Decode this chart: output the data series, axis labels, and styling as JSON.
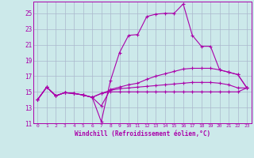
{
  "xlabel": "Windchill (Refroidissement éolien,°C)",
  "xlim": [
    -0.5,
    23.5
  ],
  "ylim": [
    11,
    26.5
  ],
  "xticks": [
    0,
    1,
    2,
    3,
    4,
    5,
    6,
    7,
    8,
    9,
    10,
    11,
    12,
    13,
    14,
    15,
    16,
    17,
    18,
    19,
    20,
    21,
    22,
    23
  ],
  "yticks": [
    11,
    13,
    15,
    17,
    19,
    21,
    23,
    25
  ],
  "bg_color": "#cce9ea",
  "grid_color": "#aab8cc",
  "line_color": "#aa00aa",
  "curves": [
    [
      [
        0,
        14.0
      ],
      [
        1,
        15.6
      ],
      [
        2,
        14.5
      ],
      [
        3,
        14.9
      ],
      [
        4,
        14.8
      ],
      [
        5,
        14.6
      ],
      [
        6,
        14.3
      ],
      [
        7,
        11.2
      ],
      [
        8,
        16.4
      ],
      [
        9,
        20.0
      ],
      [
        10,
        22.2
      ],
      [
        11,
        22.3
      ],
      [
        12,
        24.6
      ],
      [
        13,
        24.9
      ],
      [
        14,
        25.0
      ],
      [
        15,
        25.0
      ],
      [
        16,
        26.2
      ],
      [
        17,
        22.2
      ],
      [
        18,
        20.8
      ],
      [
        19,
        20.8
      ],
      [
        20,
        17.8
      ],
      [
        21,
        17.5
      ],
      [
        22,
        17.2
      ],
      [
        23,
        15.5
      ]
    ],
    [
      [
        0,
        14.0
      ],
      [
        1,
        15.6
      ],
      [
        2,
        14.5
      ],
      [
        3,
        14.9
      ],
      [
        4,
        14.8
      ],
      [
        5,
        14.6
      ],
      [
        6,
        14.3
      ],
      [
        7,
        13.2
      ],
      [
        8,
        15.3
      ],
      [
        9,
        15.6
      ],
      [
        10,
        15.9
      ],
      [
        11,
        16.1
      ],
      [
        12,
        16.6
      ],
      [
        13,
        17.0
      ],
      [
        14,
        17.3
      ],
      [
        15,
        17.6
      ],
      [
        16,
        17.9
      ],
      [
        17,
        18.0
      ],
      [
        18,
        18.0
      ],
      [
        19,
        18.0
      ],
      [
        20,
        17.8
      ],
      [
        21,
        17.5
      ],
      [
        22,
        17.2
      ],
      [
        23,
        15.5
      ]
    ],
    [
      [
        0,
        14.0
      ],
      [
        1,
        15.6
      ],
      [
        2,
        14.5
      ],
      [
        3,
        14.9
      ],
      [
        4,
        14.8
      ],
      [
        5,
        14.6
      ],
      [
        6,
        14.3
      ],
      [
        7,
        14.8
      ],
      [
        8,
        15.2
      ],
      [
        9,
        15.4
      ],
      [
        10,
        15.5
      ],
      [
        11,
        15.6
      ],
      [
        12,
        15.7
      ],
      [
        13,
        15.8
      ],
      [
        14,
        15.9
      ],
      [
        15,
        16.0
      ],
      [
        16,
        16.1
      ],
      [
        17,
        16.2
      ],
      [
        18,
        16.2
      ],
      [
        19,
        16.2
      ],
      [
        20,
        16.1
      ],
      [
        21,
        15.9
      ],
      [
        22,
        15.5
      ],
      [
        23,
        15.5
      ]
    ],
    [
      [
        0,
        14.0
      ],
      [
        1,
        15.6
      ],
      [
        2,
        14.5
      ],
      [
        3,
        14.9
      ],
      [
        4,
        14.8
      ],
      [
        5,
        14.6
      ],
      [
        6,
        14.3
      ],
      [
        7,
        14.8
      ],
      [
        8,
        15.0
      ],
      [
        9,
        15.0
      ],
      [
        10,
        15.0
      ],
      [
        11,
        15.0
      ],
      [
        12,
        15.0
      ],
      [
        13,
        15.0
      ],
      [
        14,
        15.0
      ],
      [
        15,
        15.0
      ],
      [
        16,
        15.0
      ],
      [
        17,
        15.0
      ],
      [
        18,
        15.0
      ],
      [
        19,
        15.0
      ],
      [
        20,
        15.0
      ],
      [
        21,
        15.0
      ],
      [
        22,
        15.0
      ],
      [
        23,
        15.5
      ]
    ]
  ]
}
